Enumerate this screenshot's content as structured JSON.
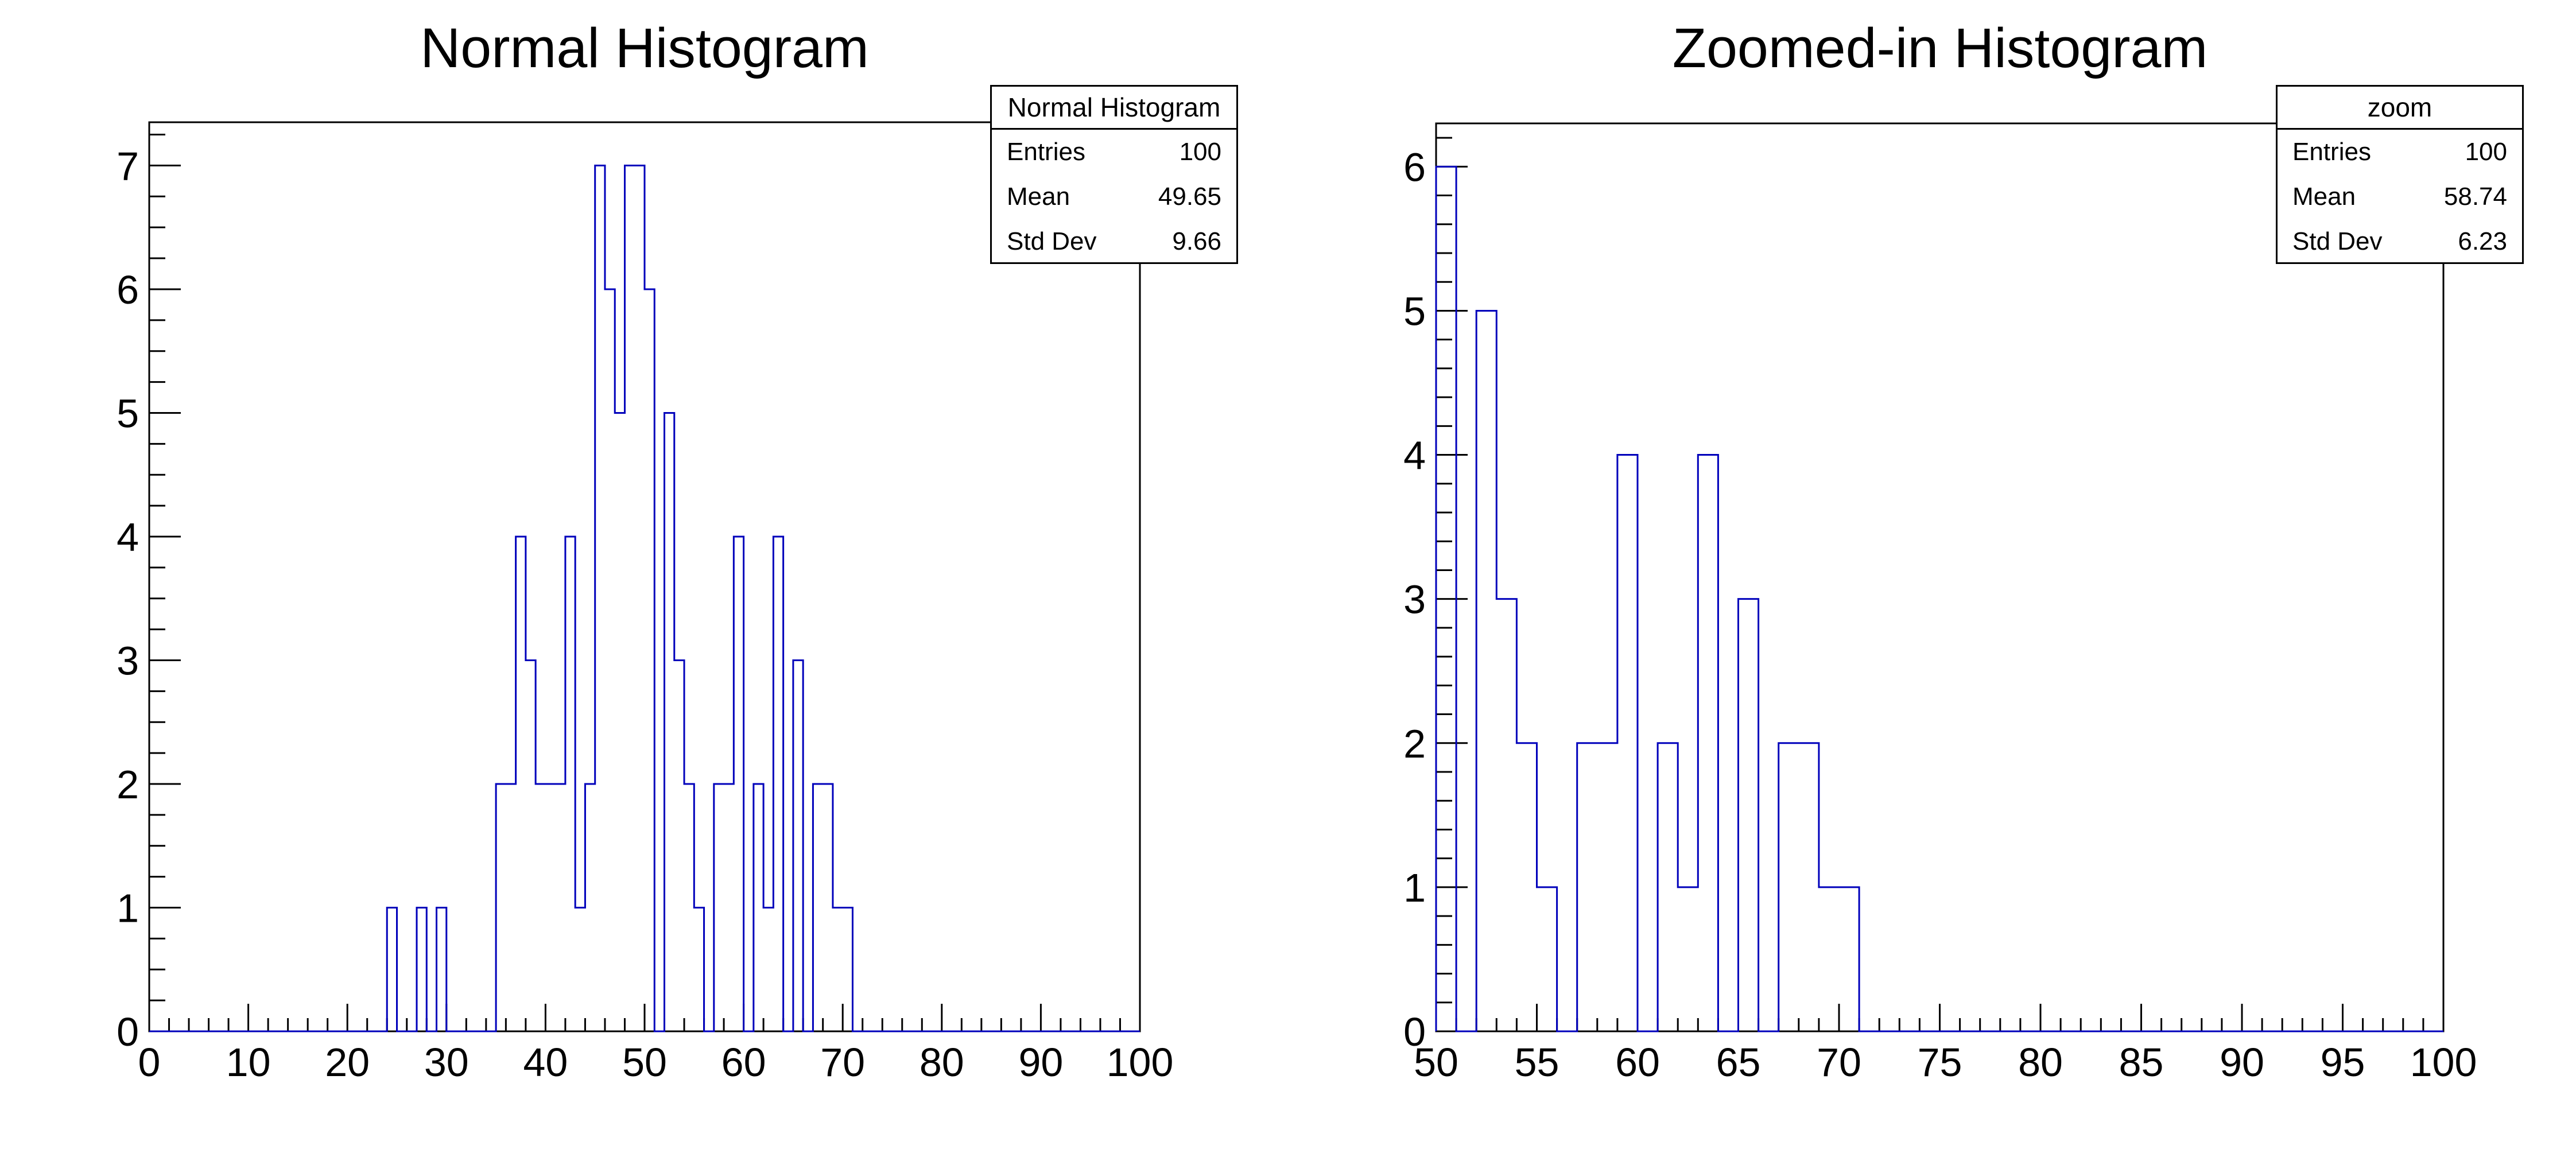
{
  "page": {
    "background": "#ffffff"
  },
  "colors": {
    "hist_line": "#0000bb",
    "axis": "#000000",
    "text": "#000000",
    "stats_bg": "#ffffff"
  },
  "panels": [
    {
      "title": "Normal Histogram",
      "stats": {
        "title": "Normal Histogram",
        "rows": [
          {
            "label": "Entries",
            "value": "100"
          },
          {
            "label": "Mean",
            "value": "49.65"
          },
          {
            "label": "Std Dev",
            "value": "9.66"
          }
        ]
      }
    },
    {
      "title": "Zoomed-in Histogram",
      "stats": {
        "title": "zoom",
        "rows": [
          {
            "label": "Entries",
            "value": "100"
          },
          {
            "label": "Mean",
            "value": "58.74"
          },
          {
            "label": "Std Dev",
            "value": "6.23"
          }
        ]
      }
    }
  ],
  "chart_data": [
    {
      "type": "bar",
      "subtype": "root-step-histogram",
      "title": "Normal Histogram",
      "xlabel": "",
      "ylabel": "",
      "xlim": [
        0,
        100
      ],
      "ylim": [
        0,
        7.35
      ],
      "bin_width": 1,
      "x_major_step": 10,
      "x_minor_step": 2,
      "y_major_step": 1,
      "y_minor_step": 0.25,
      "y_label_max": 7,
      "x_tick_labels": [
        0,
        10,
        20,
        30,
        40,
        50,
        60,
        70,
        80,
        90,
        100
      ],
      "y_tick_labels": [
        0,
        1,
        2,
        3,
        4,
        5,
        6,
        7
      ],
      "grid": false,
      "legend": false,
      "bins": [
        [
          24,
          1
        ],
        [
          27,
          1
        ],
        [
          29,
          1
        ],
        [
          35,
          2
        ],
        [
          36,
          2
        ],
        [
          37,
          4
        ],
        [
          38,
          3
        ],
        [
          39,
          2
        ],
        [
          40,
          2
        ],
        [
          41,
          2
        ],
        [
          42,
          4
        ],
        [
          43,
          1
        ],
        [
          44,
          2
        ],
        [
          45,
          7
        ],
        [
          46,
          6
        ],
        [
          47,
          5
        ],
        [
          48,
          7
        ],
        [
          49,
          7
        ],
        [
          50,
          6
        ],
        [
          52,
          5
        ],
        [
          53,
          3
        ],
        [
          54,
          2
        ],
        [
          55,
          1
        ],
        [
          57,
          2
        ],
        [
          58,
          2
        ],
        [
          59,
          4
        ],
        [
          61,
          2
        ],
        [
          62,
          1
        ],
        [
          63,
          4
        ],
        [
          65,
          3
        ],
        [
          67,
          2
        ],
        [
          68,
          2
        ],
        [
          69,
          1
        ],
        [
          70,
          1
        ]
      ]
    },
    {
      "type": "bar",
      "subtype": "root-step-histogram",
      "title": "Zoomed-in Histogram",
      "xlabel": "",
      "ylabel": "",
      "xlim": [
        50,
        100
      ],
      "ylim": [
        0,
        6.3
      ],
      "bin_width": 1,
      "x_major_step": 5,
      "x_minor_step": 1,
      "y_major_step": 1,
      "y_minor_step": 0.2,
      "y_label_max": 6,
      "x_tick_labels": [
        50,
        55,
        60,
        65,
        70,
        75,
        80,
        85,
        90,
        95,
        100
      ],
      "y_tick_labels": [
        0,
        1,
        2,
        3,
        4,
        5,
        6
      ],
      "grid": false,
      "legend": false,
      "bins": [
        [
          50,
          6
        ],
        [
          52,
          5
        ],
        [
          53,
          3
        ],
        [
          54,
          2
        ],
        [
          55,
          1
        ],
        [
          57,
          2
        ],
        [
          58,
          2
        ],
        [
          59,
          4
        ],
        [
          61,
          2
        ],
        [
          62,
          1
        ],
        [
          63,
          4
        ],
        [
          65,
          3
        ],
        [
          67,
          2
        ],
        [
          68,
          2
        ],
        [
          69,
          1
        ],
        [
          70,
          1
        ]
      ]
    }
  ]
}
